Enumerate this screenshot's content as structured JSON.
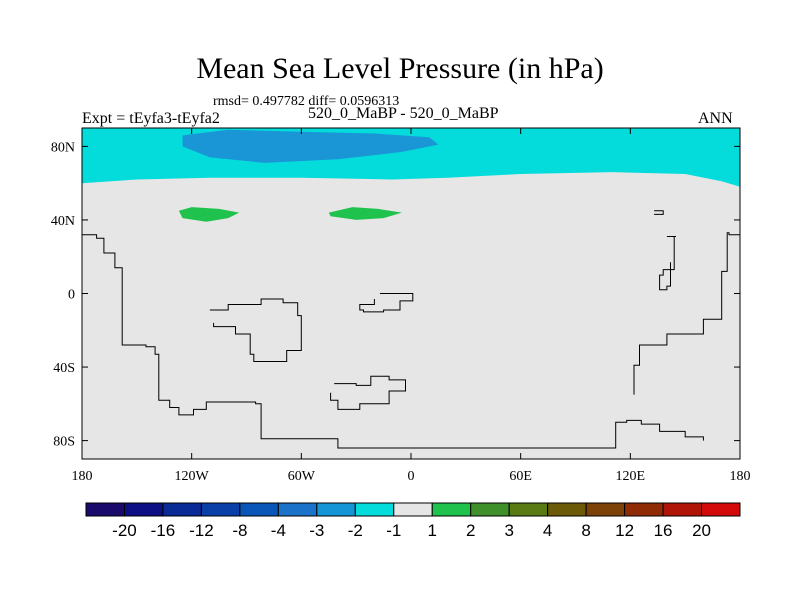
{
  "chart_data": {
    "type": "heatmap",
    "title": "Mean Sea Level Pressure (in hPa)",
    "stats_text": "rmsd= 0.497782 diff= 0.0596313",
    "left_label": "Expt = tEyfa3-tEyfa2",
    "center_label": "520_0_MaBP - 520_0_MaBP",
    "right_label": "ANN",
    "x_ticks": [
      {
        "value": -180,
        "label": "180"
      },
      {
        "value": -120,
        "label": "120W"
      },
      {
        "value": -60,
        "label": "60W"
      },
      {
        "value": 0,
        "label": "0"
      },
      {
        "value": 60,
        "label": "60E"
      },
      {
        "value": 120,
        "label": "120E"
      },
      {
        "value": 180,
        "label": "180"
      }
    ],
    "y_ticks": [
      {
        "value": 80,
        "label": "80N"
      },
      {
        "value": 40,
        "label": "40N"
      },
      {
        "value": 0,
        "label": "0"
      },
      {
        "value": -40,
        "label": "40S"
      },
      {
        "value": -80,
        "label": "80S"
      }
    ],
    "xlim": [
      -180,
      180
    ],
    "ylim": [
      -90,
      90
    ],
    "colorbar": {
      "labels": [
        "-20",
        "-16",
        "-12",
        "-8",
        "-4",
        "-3",
        "-2",
        "-1",
        "1",
        "2",
        "3",
        "4",
        "8",
        "12",
        "16",
        "20"
      ],
      "colors": [
        "#1a0a6b",
        "#0d0f84",
        "#0a2a96",
        "#0a3fa8",
        "#0a56b8",
        "#1a73c8",
        "#1496d6",
        "#04dcdc",
        "#e6e6e6",
        "#1fc24c",
        "#3f8f2a",
        "#5a7a14",
        "#6b5a08",
        "#7d4208",
        "#8f2c06",
        "#b01406",
        "#d40a0a"
      ]
    },
    "background_color": "#e6e6e6",
    "regions": [
      {
        "name": "arctic-cyan-band",
        "level": "-1",
        "color": "#04dcdc",
        "polygon": [
          [
            -180,
            90
          ],
          [
            180,
            90
          ],
          [
            180,
            58
          ],
          [
            170,
            61
          ],
          [
            150,
            65
          ],
          [
            110,
            66
          ],
          [
            60,
            65
          ],
          [
            20,
            63
          ],
          [
            -10,
            62
          ],
          [
            -60,
            63
          ],
          [
            -110,
            63
          ],
          [
            -150,
            62
          ],
          [
            -180,
            60
          ]
        ]
      },
      {
        "name": "arctic-blue-patch",
        "level": "-2",
        "color": "#1a96d6",
        "polygon": [
          [
            -125,
            86
          ],
          [
            -100,
            89
          ],
          [
            -60,
            88
          ],
          [
            -20,
            87
          ],
          [
            10,
            85
          ],
          [
            15,
            81
          ],
          [
            -5,
            77
          ],
          [
            -40,
            73
          ],
          [
            -80,
            71
          ],
          [
            -110,
            74
          ],
          [
            -125,
            80
          ]
        ]
      },
      {
        "name": "green-anomaly-west",
        "level": "2",
        "color": "#1fc24c",
        "polygon": [
          [
            -127,
            45
          ],
          [
            -120,
            47
          ],
          [
            -105,
            46
          ],
          [
            -94,
            44
          ],
          [
            -100,
            41
          ],
          [
            -112,
            39
          ],
          [
            -125,
            41
          ]
        ]
      },
      {
        "name": "green-anomaly-central",
        "level": "2",
        "color": "#1fc24c",
        "polygon": [
          [
            -45,
            44
          ],
          [
            -32,
            47
          ],
          [
            -18,
            46
          ],
          [
            -5,
            44
          ],
          [
            -15,
            41
          ],
          [
            -30,
            40
          ],
          [
            -44,
            42
          ]
        ]
      }
    ],
    "coastlines": [
      [
        [
          -180,
          32
        ],
        [
          -172,
          30
        ],
        [
          -168,
          22
        ],
        [
          -162,
          14
        ],
        [
          -158,
          -28
        ],
        [
          -145,
          -29
        ],
        [
          -140,
          -33
        ],
        [
          -138,
          -58
        ],
        [
          -132,
          -62
        ],
        [
          -127,
          -66
        ],
        [
          -119,
          -63
        ],
        [
          -112,
          -59
        ],
        [
          -85,
          -60
        ],
        [
          -82,
          -79
        ],
        [
          -40,
          -84
        ],
        [
          60,
          -84
        ],
        [
          107,
          -84
        ],
        [
          112,
          -70
        ],
        [
          118,
          -69
        ],
        [
          126,
          -71
        ],
        [
          136,
          -75
        ],
        [
          150,
          -78
        ],
        [
          160,
          -80
        ]
      ],
      [
        [
          -110,
          -9
        ],
        [
          -100,
          -6
        ],
        [
          -82,
          -3
        ],
        [
          -70,
          -5
        ],
        [
          -62,
          -12
        ],
        [
          -60,
          -31
        ],
        [
          -68,
          -37
        ],
        [
          -76,
          -37
        ],
        [
          -86,
          -33
        ],
        [
          -88,
          -22
        ],
        [
          -96,
          -18
        ],
        [
          -108,
          -16
        ]
      ],
      [
        [
          -17,
          0
        ],
        [
          -4,
          0
        ],
        [
          1,
          -4
        ],
        [
          -6,
          -9
        ],
        [
          -15,
          -10
        ],
        [
          -26,
          -9
        ],
        [
          -28,
          -6
        ],
        [
          -20,
          -3
        ]
      ],
      [
        [
          -42,
          -49
        ],
        [
          -30,
          -50
        ],
        [
          -22,
          -45
        ],
        [
          -12,
          -47
        ],
        [
          -3,
          -53
        ],
        [
          -12,
          -60
        ],
        [
          -28,
          -63
        ],
        [
          -40,
          -58
        ],
        [
          -44,
          -54
        ]
      ],
      [
        [
          133,
          45
        ],
        [
          138,
          45
        ],
        [
          138,
          43
        ],
        [
          133,
          43
        ]
      ],
      [
        [
          140,
          31
        ],
        [
          145,
          31
        ],
        [
          144,
          13
        ],
        [
          138,
          10
        ],
        [
          136,
          2
        ],
        [
          140,
          4
        ],
        [
          142,
          17
        ]
      ],
      [
        [
          180,
          32
        ],
        [
          174,
          33
        ],
        [
          173,
          12
        ],
        [
          170,
          -14
        ],
        [
          160,
          -22
        ],
        [
          140,
          -28
        ],
        [
          125,
          -39
        ],
        [
          122,
          -55
        ]
      ]
    ]
  }
}
